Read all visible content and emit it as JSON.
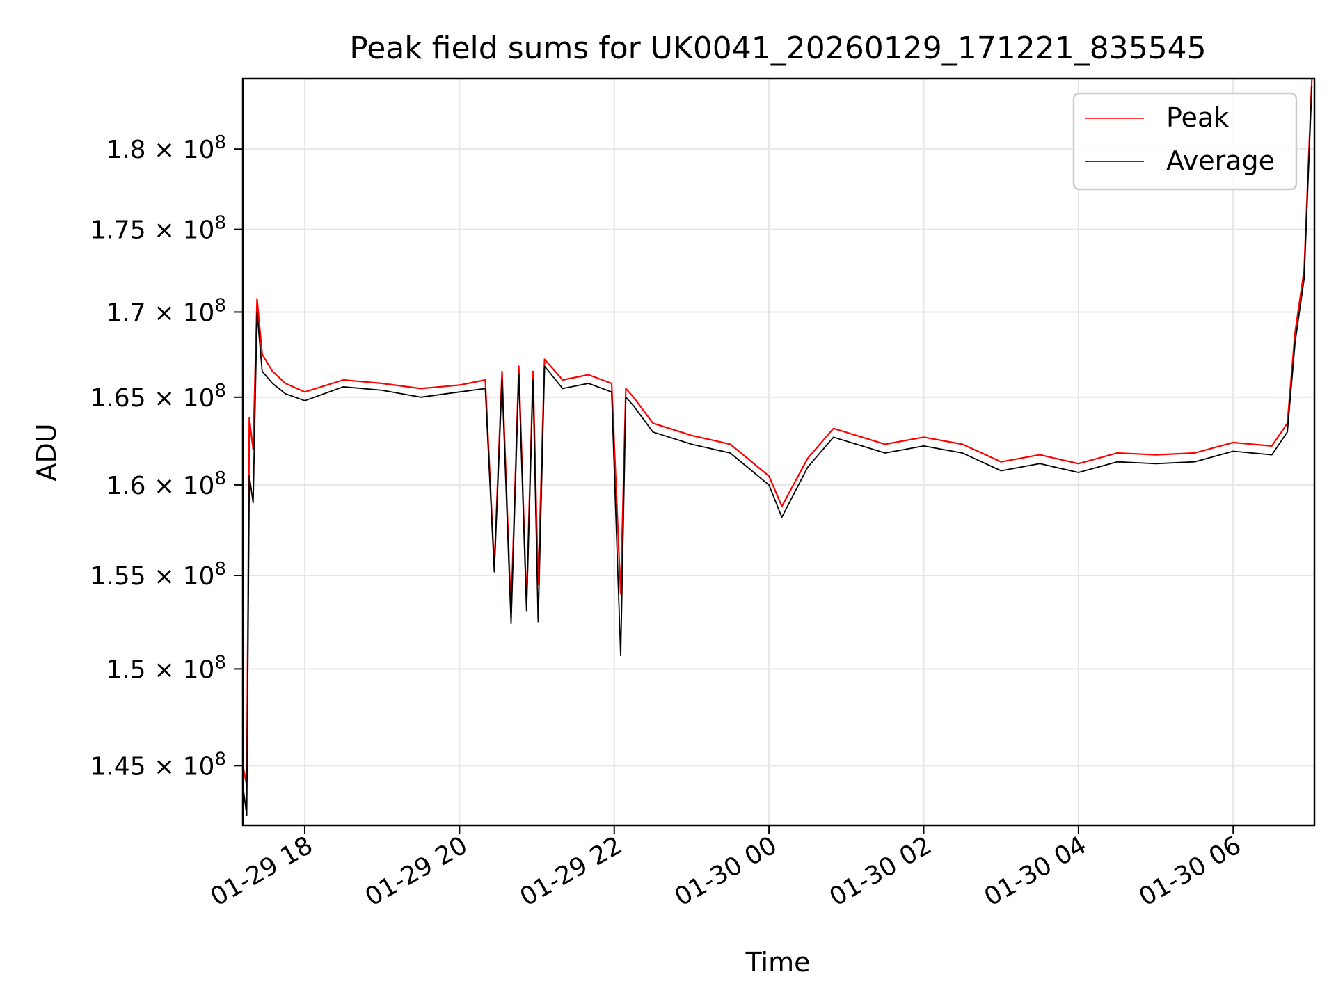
{
  "chart_data": {
    "type": "line",
    "title": "Peak field sums for UK0041_20260129_171221_835545",
    "xlabel": "Time",
    "ylabel": "ADU",
    "yscale": "log",
    "grid": true,
    "legend_position": "top-right",
    "xlim": [
      "2026-01-29 17:12",
      "2026-01-30 07:03"
    ],
    "ylim": [
      142000000,
      184500000
    ],
    "x_ticks": [
      {
        "value": "2026-01-29 18:00",
        "label": "01-29 18"
      },
      {
        "value": "2026-01-29 20:00",
        "label": "01-29 20"
      },
      {
        "value": "2026-01-29 22:00",
        "label": "01-29 22"
      },
      {
        "value": "2026-01-30 00:00",
        "label": "01-30 00"
      },
      {
        "value": "2026-01-30 02:00",
        "label": "01-30 02"
      },
      {
        "value": "2026-01-30 04:00",
        "label": "01-30 04"
      },
      {
        "value": "2026-01-30 06:00",
        "label": "01-30 06"
      }
    ],
    "y_ticks": [
      {
        "value": 145000000,
        "mantissa": "1.45",
        "exponent": "8"
      },
      {
        "value": 150000000,
        "mantissa": "1.5",
        "exponent": "8"
      },
      {
        "value": 155000000,
        "mantissa": "1.55",
        "exponent": "8"
      },
      {
        "value": 160000000,
        "mantissa": "1.6",
        "exponent": "8"
      },
      {
        "value": 165000000,
        "mantissa": "1.65",
        "exponent": "8"
      },
      {
        "value": 170000000,
        "mantissa": "1.7",
        "exponent": "8"
      },
      {
        "value": 175000000,
        "mantissa": "1.75",
        "exponent": "8"
      },
      {
        "value": 180000000,
        "mantissa": "1.8",
        "exponent": "8"
      }
    ],
    "series": [
      {
        "name": "Peak",
        "color": "#ff0000",
        "points": [
          [
            "2026-01-29 17:12",
            145000000
          ],
          [
            "2026-01-29 17:15",
            144000000
          ],
          [
            "2026-01-29 17:17",
            163800000
          ],
          [
            "2026-01-29 17:20",
            162000000
          ],
          [
            "2026-01-29 17:23",
            170800000
          ],
          [
            "2026-01-29 17:27",
            167500000
          ],
          [
            "2026-01-29 17:35",
            166500000
          ],
          [
            "2026-01-29 17:45",
            165800000
          ],
          [
            "2026-01-29 18:00",
            165300000
          ],
          [
            "2026-01-29 18:30",
            166000000
          ],
          [
            "2026-01-29 19:00",
            165800000
          ],
          [
            "2026-01-29 19:30",
            165500000
          ],
          [
            "2026-01-29 20:00",
            165700000
          ],
          [
            "2026-01-29 20:20",
            166000000
          ],
          [
            "2026-01-29 20:27",
            155500000
          ],
          [
            "2026-01-29 20:33",
            166500000
          ],
          [
            "2026-01-29 20:40",
            153000000
          ],
          [
            "2026-01-29 20:46",
            166800000
          ],
          [
            "2026-01-29 20:52",
            153500000
          ],
          [
            "2026-01-29 20:57",
            166500000
          ],
          [
            "2026-01-29 21:01",
            154500000
          ],
          [
            "2026-01-29 21:06",
            167200000
          ],
          [
            "2026-01-29 21:20",
            166000000
          ],
          [
            "2026-01-29 21:40",
            166300000
          ],
          [
            "2026-01-29 21:58",
            165800000
          ],
          [
            "2026-01-29 22:05",
            154000000
          ],
          [
            "2026-01-29 22:09",
            165500000
          ],
          [
            "2026-01-29 22:15",
            165000000
          ],
          [
            "2026-01-29 22:30",
            163500000
          ],
          [
            "2026-01-29 23:00",
            162800000
          ],
          [
            "2026-01-29 23:30",
            162300000
          ],
          [
            "2026-01-30 00:00",
            160500000
          ],
          [
            "2026-01-30 00:10",
            158800000
          ],
          [
            "2026-01-30 00:30",
            161500000
          ],
          [
            "2026-01-30 00:50",
            163200000
          ],
          [
            "2026-01-30 01:30",
            162300000
          ],
          [
            "2026-01-30 02:00",
            162700000
          ],
          [
            "2026-01-30 02:30",
            162300000
          ],
          [
            "2026-01-30 03:00",
            161300000
          ],
          [
            "2026-01-30 03:30",
            161700000
          ],
          [
            "2026-01-30 04:00",
            161200000
          ],
          [
            "2026-01-30 04:30",
            161800000
          ],
          [
            "2026-01-30 05:00",
            161700000
          ],
          [
            "2026-01-30 05:30",
            161800000
          ],
          [
            "2026-01-30 06:00",
            162400000
          ],
          [
            "2026-01-30 06:30",
            162200000
          ],
          [
            "2026-01-30 06:42",
            163500000
          ],
          [
            "2026-01-30 06:48",
            168800000
          ],
          [
            "2026-01-30 06:55",
            172500000
          ],
          [
            "2026-01-30 07:01",
            184500000
          ]
        ]
      },
      {
        "name": "Average",
        "color": "#000000",
        "points": [
          [
            "2026-01-29 17:12",
            144000000
          ],
          [
            "2026-01-29 17:15",
            142500000
          ],
          [
            "2026-01-29 17:17",
            160500000
          ],
          [
            "2026-01-29 17:20",
            159000000
          ],
          [
            "2026-01-29 17:23",
            170000000
          ],
          [
            "2026-01-29 17:27",
            166500000
          ],
          [
            "2026-01-29 17:35",
            165800000
          ],
          [
            "2026-01-29 17:45",
            165200000
          ],
          [
            "2026-01-29 18:00",
            164800000
          ],
          [
            "2026-01-29 18:30",
            165600000
          ],
          [
            "2026-01-29 19:00",
            165400000
          ],
          [
            "2026-01-29 19:30",
            165000000
          ],
          [
            "2026-01-29 20:00",
            165300000
          ],
          [
            "2026-01-29 20:20",
            165500000
          ],
          [
            "2026-01-29 20:27",
            155200000
          ],
          [
            "2026-01-29 20:33",
            166000000
          ],
          [
            "2026-01-29 20:40",
            152400000
          ],
          [
            "2026-01-29 20:46",
            166300000
          ],
          [
            "2026-01-29 20:52",
            153100000
          ],
          [
            "2026-01-29 20:57",
            166000000
          ],
          [
            "2026-01-29 21:01",
            152500000
          ],
          [
            "2026-01-29 21:06",
            166800000
          ],
          [
            "2026-01-29 21:20",
            165500000
          ],
          [
            "2026-01-29 21:40",
            165800000
          ],
          [
            "2026-01-29 21:58",
            165300000
          ],
          [
            "2026-01-29 22:05",
            150700000
          ],
          [
            "2026-01-29 22:09",
            165000000
          ],
          [
            "2026-01-29 22:15",
            164500000
          ],
          [
            "2026-01-29 22:30",
            163000000
          ],
          [
            "2026-01-29 23:00",
            162300000
          ],
          [
            "2026-01-29 23:30",
            161800000
          ],
          [
            "2026-01-30 00:00",
            160000000
          ],
          [
            "2026-01-30 00:10",
            158200000
          ],
          [
            "2026-01-30 00:30",
            161000000
          ],
          [
            "2026-01-30 00:50",
            162700000
          ],
          [
            "2026-01-30 01:30",
            161800000
          ],
          [
            "2026-01-30 02:00",
            162200000
          ],
          [
            "2026-01-30 02:30",
            161800000
          ],
          [
            "2026-01-30 03:00",
            160800000
          ],
          [
            "2026-01-30 03:30",
            161200000
          ],
          [
            "2026-01-30 04:00",
            160700000
          ],
          [
            "2026-01-30 04:30",
            161300000
          ],
          [
            "2026-01-30 05:00",
            161200000
          ],
          [
            "2026-01-30 05:30",
            161300000
          ],
          [
            "2026-01-30 06:00",
            161900000
          ],
          [
            "2026-01-30 06:30",
            161700000
          ],
          [
            "2026-01-30 06:42",
            163000000
          ],
          [
            "2026-01-30 06:48",
            168200000
          ],
          [
            "2026-01-30 06:55",
            172000000
          ],
          [
            "2026-01-30 07:01",
            184000000
          ]
        ]
      }
    ]
  }
}
